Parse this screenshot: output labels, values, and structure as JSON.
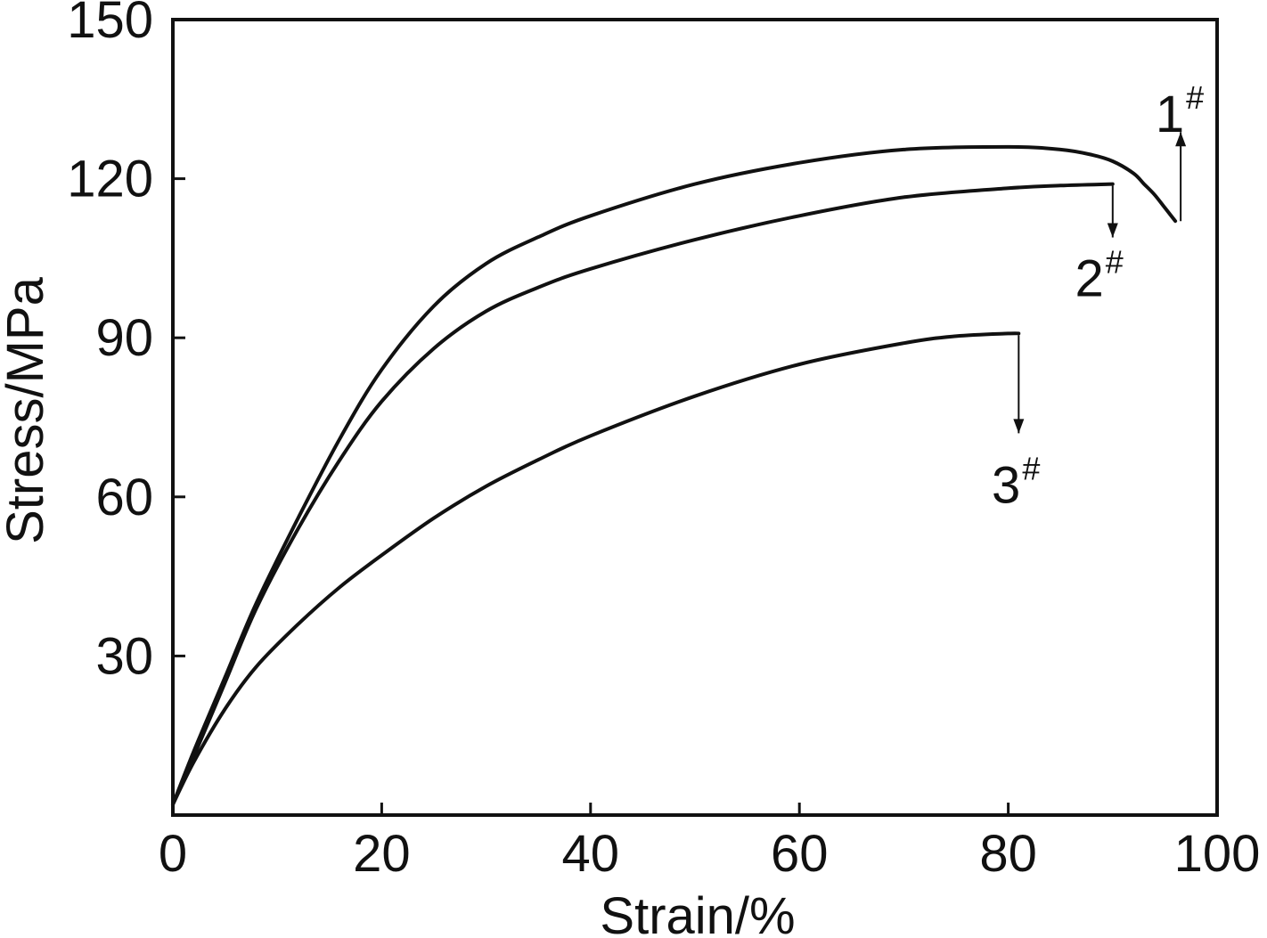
{
  "chart_data": {
    "type": "line",
    "xlabel": "Strain/%",
    "ylabel": "Stress/MPa",
    "xlim": [
      0,
      100
    ],
    "ylim": [
      0,
      150
    ],
    "xticks": [
      0,
      20,
      40,
      60,
      80,
      100
    ],
    "yticks": [
      30,
      60,
      90,
      120,
      150
    ],
    "grid": false,
    "colors": {
      "line": "#111111",
      "background": "#ffffff"
    },
    "series": [
      {
        "label": "1",
        "sup": "#",
        "label_arrow": "up",
        "x": [
          0,
          2,
          5,
          8,
          12,
          16,
          20,
          25,
          30,
          35,
          40,
          50,
          60,
          70,
          80,
          85,
          88,
          90,
          92,
          93,
          94,
          95,
          96
        ],
        "y": [
          2,
          12,
          26,
          40,
          56,
          71,
          84,
          96,
          104,
          109,
          113,
          119,
          123,
          125.5,
          126,
          125.5,
          124.5,
          123.3,
          121,
          119,
          117,
          114.5,
          112
        ]
      },
      {
        "label": "2",
        "sup": "#",
        "label_arrow": "down",
        "x": [
          0,
          2,
          5,
          8,
          12,
          16,
          20,
          25,
          30,
          35,
          40,
          50,
          60,
          70,
          80,
          85,
          90
        ],
        "y": [
          2,
          11,
          25,
          39,
          54,
          67,
          78,
          88,
          95,
          99.5,
          103,
          108.5,
          113,
          116.5,
          118.2,
          118.7,
          119
        ]
      },
      {
        "label": "3",
        "sup": "#",
        "label_arrow": "down",
        "x": [
          0,
          2,
          5,
          8,
          12,
          16,
          20,
          25,
          30,
          35,
          40,
          50,
          60,
          70,
          75,
          80,
          81
        ],
        "y": [
          2,
          10,
          20,
          28,
          36,
          43,
          49,
          56,
          62,
          67,
          71.5,
          79,
          85,
          89,
          90.3,
          90.8,
          90.8
        ]
      }
    ]
  }
}
